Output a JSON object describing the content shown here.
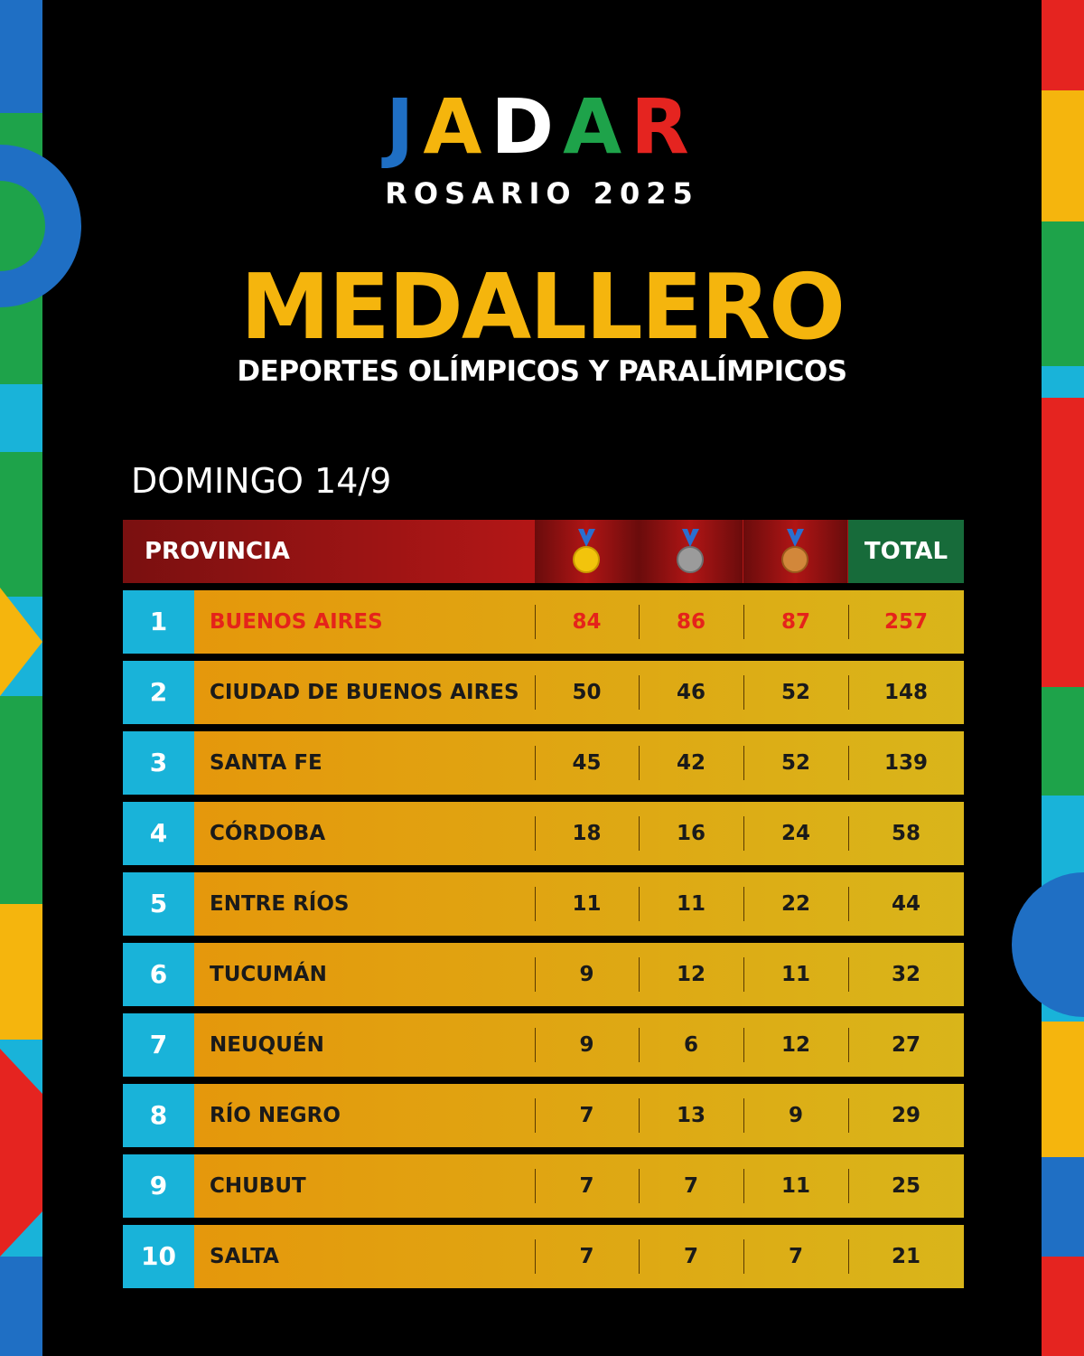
{
  "logo": {
    "letters": [
      "J",
      "A",
      "D",
      "A",
      "R"
    ],
    "subtitle": "ROSARIO 2025"
  },
  "title": "MEDALLERO",
  "subtitle": "DEPORTES OLÍMPICOS Y PARALÍMPICOS",
  "date": "DOMINGO 14/9",
  "table": {
    "header": {
      "province": "PROVINCIA",
      "total": "TOTAL"
    },
    "rows": [
      [
        1,
        "BUENOS AIRES",
        84,
        86,
        87,
        257
      ],
      [
        2,
        "CIUDAD DE BUENOS AIRES",
        50,
        46,
        52,
        148
      ],
      [
        3,
        "SANTA FE",
        45,
        42,
        52,
        139
      ],
      [
        4,
        "CÓRDOBA",
        18,
        16,
        24,
        58
      ],
      [
        5,
        "ENTRE RÍOS",
        11,
        11,
        22,
        44
      ],
      [
        6,
        "TUCUMÁN",
        9,
        12,
        11,
        32
      ],
      [
        7,
        "NEUQUÉN",
        9,
        6,
        12,
        27
      ],
      [
        8,
        "RÍO NEGRO",
        7,
        13,
        9,
        29
      ],
      [
        9,
        "CHUBUT",
        7,
        7,
        11,
        25
      ],
      [
        10,
        "SALTA",
        7,
        7,
        7,
        21
      ]
    ]
  }
}
